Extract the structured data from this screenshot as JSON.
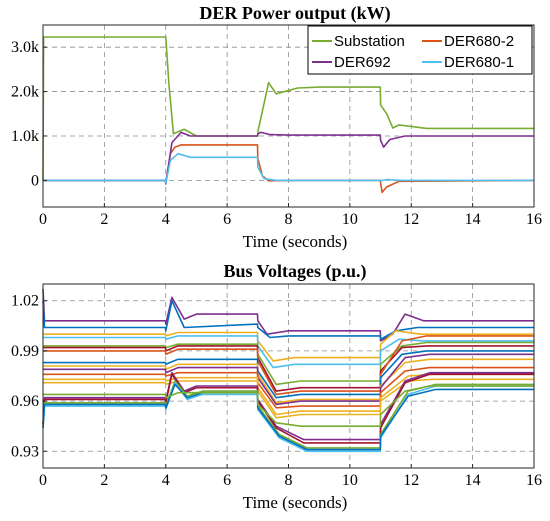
{
  "colors": {
    "substation": "#77ac30",
    "der692": "#7e2f8e",
    "der680_2": "#d95319",
    "der680_1": "#4dbeee",
    "yellow": "#edb120",
    "darkred": "#a2142f",
    "blue": "#0072bd"
  },
  "chart_data": [
    {
      "type": "line",
      "title": "DER Power output (kW)",
      "xlabel": "Time (seconds)",
      "xlim": [
        0,
        16
      ],
      "ylim": [
        -600,
        3500
      ],
      "xticks": [
        0,
        2,
        4,
        6,
        8,
        10,
        12,
        14,
        16
      ],
      "yticks": [
        {
          "value": 0,
          "label": "0"
        },
        {
          "value": 1000,
          "label": "1.0k"
        },
        {
          "value": 2000,
          "label": "2.0k"
        },
        {
          "value": 3000,
          "label": "3.0k"
        }
      ],
      "grid": true,
      "legend": "top-right",
      "series": [
        {
          "name": "Substation",
          "color": "#77ac30",
          "x": [
            0,
            0.02,
            4.0,
            4.1,
            4.25,
            4.6,
            5.0,
            6.99,
            7.02,
            7.35,
            7.6,
            8.3,
            9.0,
            10.99,
            11.0,
            11.2,
            11.4,
            11.6,
            12.5,
            16
          ],
          "y": [
            0,
            3230,
            3230,
            2200,
            1050,
            1150,
            1000,
            1000,
            1150,
            2200,
            1950,
            2080,
            2100,
            2100,
            1700,
            1500,
            1180,
            1250,
            1170,
            1170
          ]
        },
        {
          "name": "DER680-2",
          "color": "#d95319",
          "x": [
            0,
            3.99,
            4.0,
            4.15,
            4.3,
            4.5,
            5.0,
            6.99,
            7.0,
            7.15,
            7.35,
            8.0,
            10.99,
            11.0,
            11.05,
            11.2,
            11.6,
            16
          ],
          "y": [
            0,
            0,
            -50,
            600,
            750,
            800,
            800,
            800,
            500,
            100,
            -10,
            0,
            0,
            -50,
            -270,
            -150,
            -20,
            0
          ]
        },
        {
          "name": "DER692",
          "color": "#7e2f8e",
          "x": [
            0,
            3.99,
            4.0,
            4.2,
            4.5,
            4.8,
            5.2,
            6.99,
            7.0,
            7.1,
            7.4,
            8.0,
            10.99,
            11.0,
            11.1,
            11.3,
            11.8,
            16
          ],
          "y": [
            0,
            0,
            -80,
            850,
            1080,
            1000,
            1000,
            1000,
            1050,
            1080,
            1030,
            1020,
            1020,
            900,
            750,
            920,
            1000,
            1000
          ]
        },
        {
          "name": "DER680-1",
          "color": "#4dbeee",
          "x": [
            0,
            3.99,
            4.0,
            4.15,
            4.4,
            4.8,
            6.99,
            7.0,
            7.2,
            7.6,
            10.99,
            11.0,
            11.2,
            11.7,
            16
          ],
          "y": [
            0,
            0,
            -60,
            450,
            600,
            520,
            520,
            300,
            40,
            0,
            0,
            -10,
            20,
            0,
            0
          ]
        }
      ]
    },
    {
      "type": "line",
      "title": "Bus Voltages (p.u.)",
      "xlabel": "Time (seconds)",
      "xlim": [
        0,
        16
      ],
      "ylim": [
        0.92,
        1.03
      ],
      "xticks": [
        0,
        2,
        4,
        6,
        8,
        10,
        12,
        14,
        16
      ],
      "yticks": [
        {
          "value": 0.93,
          "label": "0.93"
        },
        {
          "value": 0.96,
          "label": "0.96"
        },
        {
          "value": 0.99,
          "label": "0.99"
        },
        {
          "value": 1.02,
          "label": "1.02"
        }
      ],
      "grid": true,
      "series": [
        {
          "color": "#7e2f8e",
          "x": [
            0,
            0.05,
            3.99,
            4.0,
            4.2,
            4.6,
            5.0,
            6.99,
            7.0,
            7.3,
            8.0,
            10.99,
            11.0,
            11.4,
            11.8,
            12.4,
            16
          ],
          "y": [
            1.027,
            1.008,
            1.008,
            1.006,
            1.022,
            1.009,
            1.012,
            1.012,
            1.008,
            1.0,
            1.002,
            1.002,
            0.996,
            1.0,
            1.012,
            1.008,
            1.008
          ]
        },
        {
          "color": "#0072bd",
          "x": [
            0,
            0.05,
            3.99,
            4.0,
            4.2,
            4.6,
            6.99,
            7.0,
            7.4,
            8.0,
            10.99,
            11.0,
            11.5,
            12.2,
            16
          ],
          "y": [
            1.02,
            1.004,
            1.004,
            1.002,
            1.02,
            1.004,
            1.006,
            1.004,
            0.998,
            0.999,
            0.999,
            0.997,
            1.002,
            1.004,
            1.004
          ]
        },
        {
          "color": "#edb120",
          "x": [
            0,
            3.99,
            4.0,
            4.4,
            6.99,
            7.0,
            7.5,
            8.2,
            10.99,
            11.0,
            11.5,
            12.3,
            16
          ],
          "y": [
            1.0,
            1.0,
            0.999,
            1.001,
            1.001,
            0.996,
            0.984,
            0.986,
            0.986,
            0.994,
            1.002,
            1.0,
            1.0
          ]
        },
        {
          "color": "#4dbeee",
          "x": [
            0,
            3.99,
            4.0,
            4.4,
            6.99,
            7.0,
            7.5,
            8.2,
            10.99,
            11.0,
            11.6,
            12.4,
            16
          ],
          "y": [
            0.998,
            0.998,
            0.997,
            0.999,
            0.999,
            0.993,
            0.98,
            0.982,
            0.982,
            0.99,
            0.997,
            0.996,
            0.996
          ]
        },
        {
          "color": "#77ac30",
          "x": [
            0,
            3.99,
            4.0,
            4.4,
            6.99,
            7.0,
            7.6,
            8.4,
            10.99,
            11.0,
            11.7,
            12.5,
            16
          ],
          "y": [
            0.993,
            0.993,
            0.992,
            0.994,
            0.994,
            0.988,
            0.97,
            0.972,
            0.972,
            0.982,
            0.993,
            0.995,
            0.995
          ]
        },
        {
          "color": "#a2142f",
          "x": [
            0,
            3.99,
            4.0,
            4.4,
            6.99,
            7.0,
            7.6,
            8.4,
            10.99,
            11.0,
            11.7,
            12.5,
            16
          ],
          "y": [
            0.992,
            0.992,
            0.99,
            0.993,
            0.993,
            0.986,
            0.966,
            0.968,
            0.968,
            0.978,
            0.992,
            0.993,
            0.993
          ]
        },
        {
          "color": "#d95319",
          "x": [
            0,
            3.99,
            4.0,
            4.4,
            6.99,
            7.0,
            7.6,
            8.4,
            10.99,
            11.0,
            11.7,
            12.5,
            16
          ],
          "y": [
            0.99,
            0.99,
            0.988,
            0.991,
            0.991,
            0.984,
            0.964,
            0.966,
            0.966,
            0.976,
            0.996,
            0.999,
            0.999
          ]
        },
        {
          "color": "#0072bd",
          "x": [
            0,
            3.99,
            4.0,
            4.4,
            6.99,
            7.0,
            7.6,
            8.4,
            10.99,
            11.0,
            11.7,
            12.5,
            16
          ],
          "y": [
            0.983,
            0.983,
            0.982,
            0.985,
            0.985,
            0.978,
            0.962,
            0.964,
            0.964,
            0.974,
            0.988,
            0.99,
            0.99
          ]
        },
        {
          "color": "#edb120",
          "x": [
            0,
            3.99,
            4.0,
            4.4,
            6.99,
            7.0,
            7.6,
            8.4,
            10.99,
            11.0,
            11.8,
            12.6,
            16
          ],
          "y": [
            0.981,
            0.981,
            0.979,
            0.982,
            0.982,
            0.976,
            0.959,
            0.961,
            0.961,
            0.969,
            0.983,
            0.985,
            0.985
          ]
        },
        {
          "color": "#7e2f8e",
          "x": [
            0,
            3.99,
            4.0,
            4.4,
            6.99,
            7.0,
            7.6,
            8.4,
            10.99,
            11.0,
            11.8,
            12.6,
            16
          ],
          "y": [
            0.979,
            0.979,
            0.977,
            0.98,
            0.98,
            0.974,
            0.958,
            0.96,
            0.96,
            0.968,
            0.986,
            0.988,
            0.988
          ]
        },
        {
          "color": "#d95319",
          "x": [
            0,
            3.99,
            4.0,
            4.4,
            6.99,
            7.0,
            7.6,
            8.4,
            10.99,
            11.0,
            11.8,
            12.6,
            16
          ],
          "y": [
            0.976,
            0.976,
            0.975,
            0.977,
            0.977,
            0.971,
            0.956,
            0.957,
            0.957,
            0.965,
            0.978,
            0.98,
            0.98
          ]
        },
        {
          "color": "#edb120",
          "x": [
            0,
            3.99,
            4.0,
            4.4,
            6.99,
            7.0,
            7.6,
            8.4,
            10.99,
            11.0,
            11.9,
            12.7,
            16
          ],
          "y": [
            0.973,
            0.973,
            0.972,
            0.974,
            0.974,
            0.968,
            0.952,
            0.954,
            0.954,
            0.962,
            0.975,
            0.976,
            0.976
          ]
        },
        {
          "color": "#edb120",
          "x": [
            0,
            3.99,
            4.0,
            4.4,
            6.99,
            7.0,
            7.6,
            8.4,
            10.99,
            11.0,
            11.9,
            12.7,
            16
          ],
          "y": [
            0.971,
            0.971,
            0.97,
            0.972,
            0.972,
            0.966,
            0.95,
            0.952,
            0.952,
            0.96,
            0.972,
            0.973,
            0.973
          ]
        },
        {
          "color": "#7e2f8e",
          "x": [
            0,
            0.05,
            3.99,
            4.0,
            4.2,
            4.6,
            5.0,
            6.99,
            7.0,
            7.6,
            8.5,
            10.99,
            11.0,
            11.8,
            12.6,
            16
          ],
          "y": [
            0.946,
            0.962,
            0.962,
            0.96,
            0.977,
            0.966,
            0.969,
            0.969,
            0.961,
            0.945,
            0.937,
            0.937,
            0.946,
            0.972,
            0.977,
            0.977
          ]
        },
        {
          "color": "#a2142f",
          "x": [
            0,
            0.05,
            3.99,
            4.0,
            4.2,
            4.6,
            5.0,
            6.99,
            7.0,
            7.6,
            8.5,
            10.99,
            11.0,
            11.8,
            12.6,
            16
          ],
          "y": [
            0.946,
            0.961,
            0.961,
            0.959,
            0.976,
            0.965,
            0.968,
            0.968,
            0.96,
            0.944,
            0.935,
            0.935,
            0.944,
            0.971,
            0.976,
            0.976
          ]
        },
        {
          "color": "#77ac30",
          "x": [
            0,
            0.05,
            3.99,
            4.0,
            4.3,
            4.7,
            5.2,
            6.99,
            7.0,
            7.7,
            8.6,
            10.99,
            11.0,
            11.9,
            12.8,
            16
          ],
          "y": [
            0.946,
            0.959,
            0.959,
            0.957,
            0.972,
            0.963,
            0.966,
            0.966,
            0.957,
            0.94,
            0.932,
            0.932,
            0.94,
            0.966,
            0.97,
            0.97
          ]
        },
        {
          "color": "#4dbeee",
          "x": [
            0,
            0.05,
            3.99,
            4.0,
            4.3,
            4.7,
            5.2,
            6.99,
            7.0,
            7.7,
            8.6,
            10.99,
            11.0,
            11.9,
            12.8,
            16
          ],
          "y": [
            0.944,
            0.957,
            0.957,
            0.955,
            0.971,
            0.961,
            0.964,
            0.964,
            0.955,
            0.938,
            0.93,
            0.93,
            0.938,
            0.964,
            0.969,
            0.969
          ]
        },
        {
          "color": "#0072bd",
          "x": [
            0,
            0.05,
            3.99,
            4.0,
            4.3,
            4.7,
            5.2,
            6.99,
            7.0,
            7.7,
            8.6,
            10.99,
            11.0,
            11.9,
            12.8,
            16
          ],
          "y": [
            0.944,
            0.958,
            0.958,
            0.956,
            0.97,
            0.962,
            0.965,
            0.965,
            0.956,
            0.939,
            0.931,
            0.931,
            0.939,
            0.963,
            0.967,
            0.967
          ]
        },
        {
          "color": "#77ac30",
          "x": [
            0,
            3.99,
            4.0,
            4.4,
            6.99,
            7.0,
            7.6,
            8.4,
            10.99,
            11.0,
            11.8,
            12.6,
            16
          ],
          "y": [
            0.964,
            0.964,
            0.962,
            0.965,
            0.965,
            0.958,
            0.947,
            0.945,
            0.945,
            0.952,
            0.966,
            0.969,
            0.969
          ]
        }
      ]
    }
  ],
  "legend": [
    {
      "label": "Substation",
      "color": "#77ac30"
    },
    {
      "label": "DER680-2",
      "color": "#d95319"
    },
    {
      "label": "DER692",
      "color": "#7e2f8e"
    },
    {
      "label": "DER680-1",
      "color": "#4dbeee"
    }
  ]
}
